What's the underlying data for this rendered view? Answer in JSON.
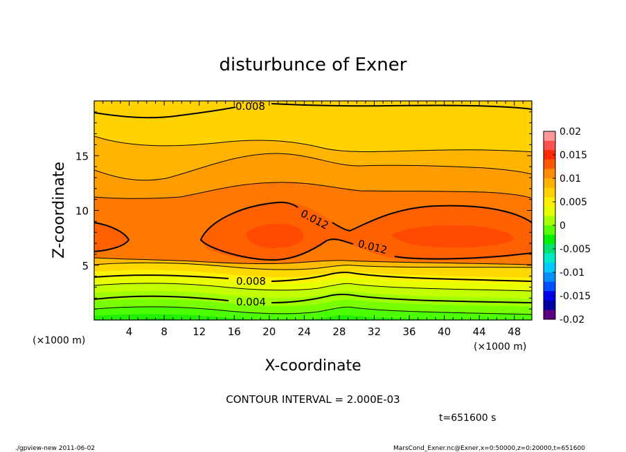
{
  "chart_data": {
    "type": "contour",
    "title": "disturbunce of Exner",
    "xlabel": "X-coordinate",
    "ylabel": "Z-coordinate",
    "x_unit": "(×1000 m)",
    "y_unit": "(×1000 m)",
    "xlim": [
      0,
      50
    ],
    "ylim": [
      0,
      20
    ],
    "x_ticks": [
      4,
      8,
      12,
      16,
      20,
      24,
      28,
      32,
      36,
      40,
      44,
      48
    ],
    "y_ticks": [
      5,
      10,
      15
    ],
    "contour_interval_text": "CONTOUR INTERVAL = 2.000E-03",
    "contour_labels": [
      "0.008",
      "0.012",
      "0.012",
      "0.008",
      "0.004"
    ],
    "colorbar": {
      "ticks": [
        "0.02",
        "0.015",
        "0.01",
        "0.005",
        "0",
        "-0.005",
        "-0.01",
        "-0.015",
        "-0.02"
      ],
      "levels": [
        0.02,
        0.015,
        0.01,
        0.005,
        0,
        -0.005,
        -0.01,
        -0.015,
        -0.02
      ],
      "colors": [
        "#ff9999",
        "#ff5050",
        "#ff2a00",
        "#ff5800",
        "#ff8c00",
        "#ffb000",
        "#ffd000",
        "#ffee00",
        "#e6ff00",
        "#a8ff00",
        "#55ff00",
        "#00ee00",
        "#00e070",
        "#00e8c8",
        "#00c8ff",
        "#0090ff",
        "#0050ff",
        "#0000ee",
        "#0000a0",
        "#5a0080"
      ]
    }
  },
  "time_text": "t=651600 s",
  "footer_left": "./gpview-new  2011-06-02",
  "footer_right": "MarsCond_Exner.nc@Exner,x=0:50000,z=0:20000,t=651600"
}
